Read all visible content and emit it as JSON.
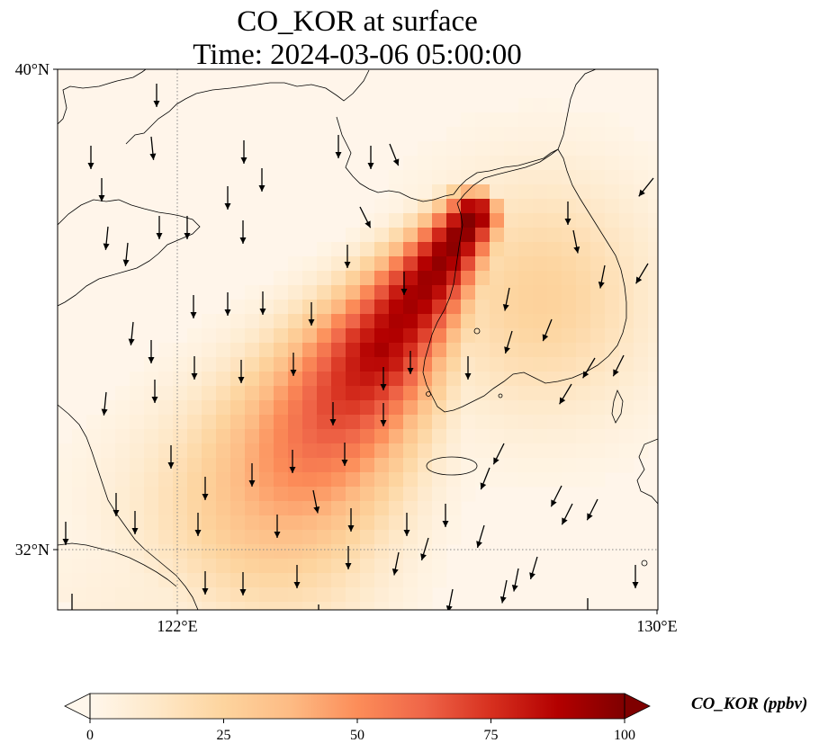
{
  "title_line1": "CO_KOR at surface",
  "title_line2": "Time: 2024-03-06 05:00:00",
  "map": {
    "lon_range": [
      119.5,
      130
    ],
    "lat_range": [
      30.75,
      40
    ],
    "lon_ticks": [
      {
        "value": 122,
        "label": "122°E"
      },
      {
        "value": 130,
        "label": "130°E"
      }
    ],
    "lat_ticks": [
      {
        "value": 40,
        "label": "40°N"
      },
      {
        "value": 32,
        "label": "32°N"
      }
    ],
    "gridlines": {
      "lons": [
        122
      ],
      "lats": [
        32
      ],
      "style": "dotted",
      "color": "#888888"
    },
    "plume_max_location": "west coast of Korean peninsula",
    "wind_direction": "mostly from the north, pointing south to south-southwest"
  },
  "colorbar": {
    "label": "CO_KOR (ppbv)",
    "min": 0,
    "max": 100,
    "ticks": [
      0,
      25,
      50,
      75,
      100
    ],
    "cmap": "OrRd",
    "extend": "both",
    "stops": [
      "#fff7ec",
      "#fee8c8",
      "#fdd49e",
      "#fdbb84",
      "#fc8d59",
      "#ef6548",
      "#d7301f",
      "#b30000",
      "#7f0000"
    ]
  },
  "chart_data": {
    "type": "heatmap",
    "title": "CO_KOR at surface\nTime: 2024-03-06 05:00:00",
    "xlabel": "",
    "ylabel": "",
    "xlim": [
      119.5,
      130
    ],
    "ylim": [
      30.75,
      40
    ],
    "x_ticks": [
      "122°E",
      "130°E"
    ],
    "y_ticks": [
      "40°N",
      "32°N"
    ],
    "colorbar_label": "CO_KOR (ppbv)",
    "colorbar_range": [
      0,
      100
    ],
    "cells": [
      {
        "lon": 126.3,
        "lat": 37.5,
        "value": 100
      },
      {
        "lon": 126.2,
        "lat": 37.2,
        "value": 95
      },
      {
        "lon": 126.1,
        "lat": 36.8,
        "value": 90
      },
      {
        "lon": 126.3,
        "lat": 36.3,
        "value": 100
      },
      {
        "lon": 126.1,
        "lat": 36.0,
        "value": 88
      },
      {
        "lon": 125.9,
        "lat": 35.5,
        "value": 75
      },
      {
        "lon": 125.7,
        "lat": 35.0,
        "value": 65
      },
      {
        "lon": 125.3,
        "lat": 34.5,
        "value": 45
      },
      {
        "lon": 124.8,
        "lat": 33.8,
        "value": 35
      },
      {
        "lon": 124.2,
        "lat": 33.0,
        "value": 25
      },
      {
        "lon": 123.6,
        "lat": 32.2,
        "value": 20
      },
      {
        "lon": 123.0,
        "lat": 31.4,
        "value": 15
      },
      {
        "lon": 127.0,
        "lat": 36.5,
        "value": 30
      },
      {
        "lon": 128.0,
        "lat": 36.3,
        "value": 18
      },
      {
        "lon": 127.2,
        "lat": 37.3,
        "value": 20
      }
    ],
    "wind_vectors": [
      {
        "lon": 121.0,
        "lat": 39.3,
        "u": 0,
        "v": -1
      },
      {
        "lon": 120.5,
        "lat": 38.3,
        "u": 0,
        "v": -1
      },
      {
        "lon": 121.3,
        "lat": 37.3,
        "u": -0.1,
        "v": -1
      },
      {
        "lon": 122.5,
        "lat": 36.5,
        "u": 0.1,
        "v": -1
      },
      {
        "lon": 123.8,
        "lat": 37.0,
        "u": 0,
        "v": -1
      },
      {
        "lon": 125.0,
        "lat": 35.3,
        "u": 0,
        "v": -1
      },
      {
        "lon": 127.2,
        "lat": 33.0,
        "u": -0.5,
        "v": -1
      },
      {
        "lon": 128.8,
        "lat": 32.4,
        "u": -0.6,
        "v": -1
      },
      {
        "lon": 129.5,
        "lat": 35.5,
        "u": -0.4,
        "v": -1
      },
      {
        "lon": 129.8,
        "lat": 38.0,
        "u": -0.5,
        "v": -0.5
      }
    ]
  }
}
